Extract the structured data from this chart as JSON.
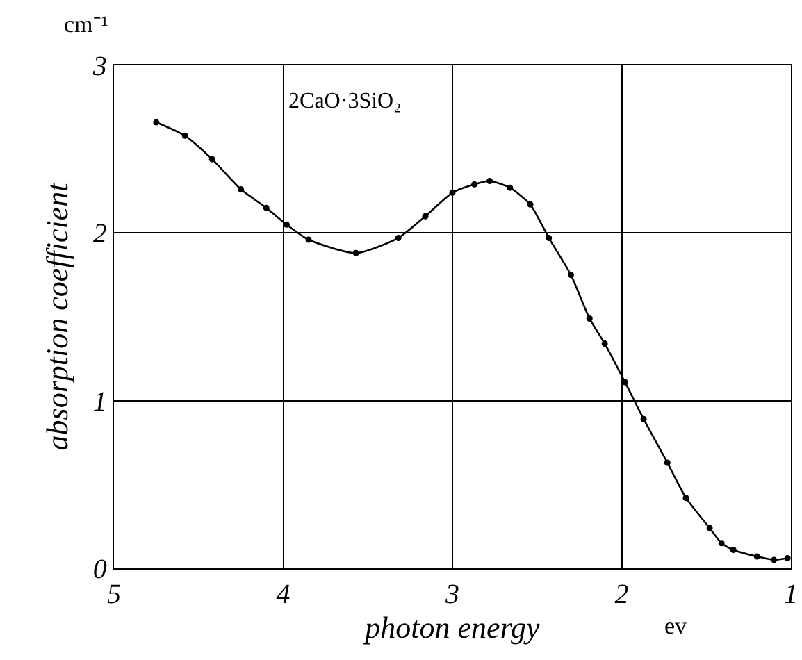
{
  "chart_data": {
    "type": "line",
    "title": "2CaO·3SiO₂",
    "xlabel": "photon energy",
    "ylabel": "absorption coefficient",
    "annotations": [
      "cm⁻¹",
      "ev"
    ],
    "series": [
      {
        "color": "#000000",
        "x": [
          4.75,
          4.58,
          4.42,
          4.25,
          4.1,
          3.98,
          3.85,
          3.57,
          3.32,
          3.16,
          3.0,
          2.87,
          2.78,
          2.66,
          2.54,
          2.43,
          2.3,
          2.19,
          2.1,
          1.98,
          1.87,
          1.73,
          1.62,
          1.48,
          1.41,
          1.34,
          1.2,
          1.1,
          1.02
        ],
        "values": [
          2.66,
          2.58,
          2.44,
          2.26,
          2.15,
          2.05,
          1.96,
          1.88,
          1.97,
          2.1,
          2.24,
          2.29,
          2.31,
          2.27,
          2.17,
          1.97,
          1.75,
          1.49,
          1.34,
          1.11,
          0.89,
          0.63,
          0.42,
          0.24,
          0.15,
          0.11,
          0.07,
          0.05,
          0.06
        ]
      }
    ],
    "xlim": [
      5,
      1
    ],
    "xticks": [
      5,
      4,
      3,
      2,
      1
    ],
    "ylim": [
      0,
      3
    ],
    "yticks": [
      0,
      1,
      2,
      3
    ],
    "grid": true,
    "marker": "circle",
    "line_style": "solid"
  }
}
